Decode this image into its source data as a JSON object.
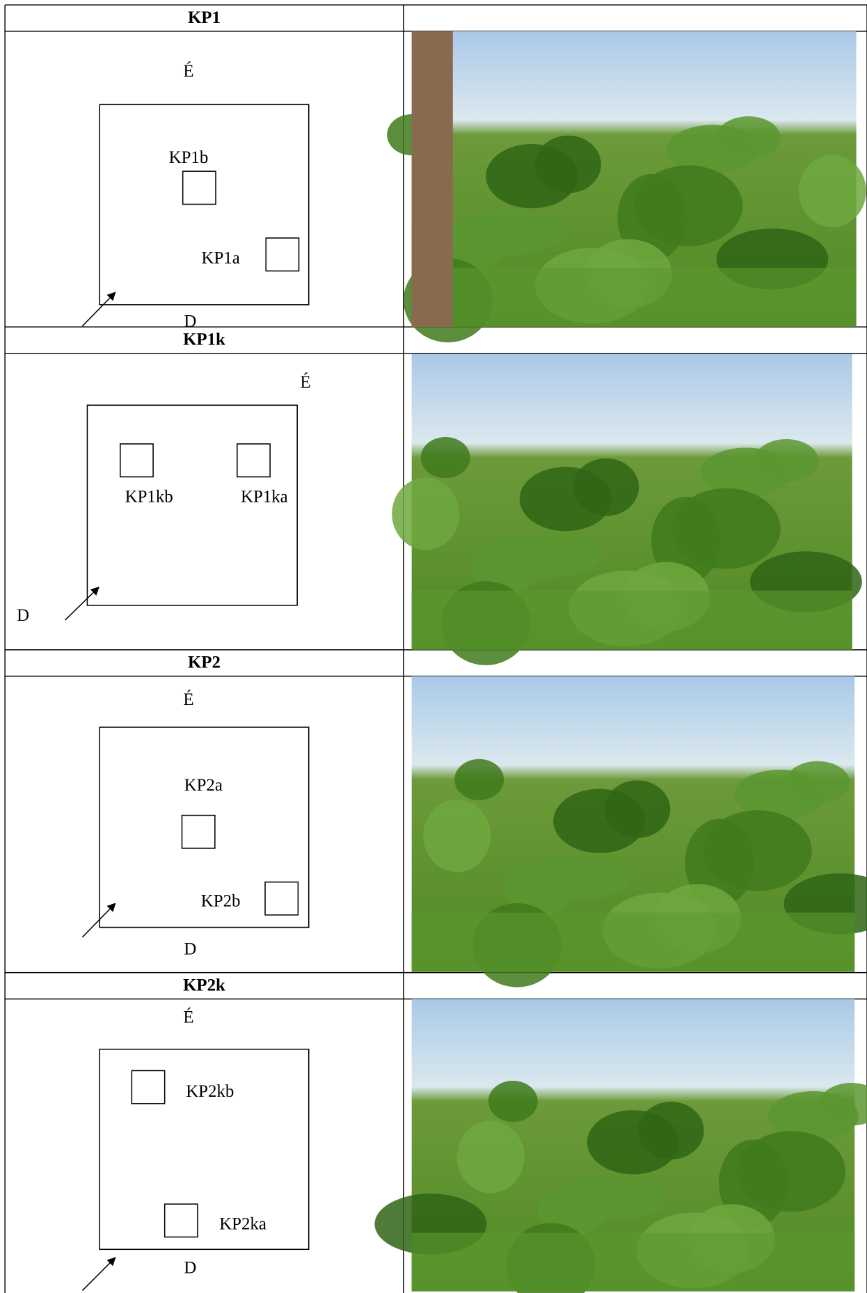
{
  "sections": [
    {
      "title": "KP1",
      "north": "É",
      "south": "D",
      "plots": [
        "KP1b",
        "KP1a"
      ]
    },
    {
      "title": "KP1k",
      "north": "É",
      "south": "D",
      "plots": [
        "KP1kb",
        "KP1ka"
      ]
    },
    {
      "title": "KP2",
      "north": "É",
      "south": "D",
      "plots": [
        "KP2a",
        "KP2b"
      ]
    },
    {
      "title": "KP2k",
      "north": "É",
      "south": "D",
      "plots": [
        "KP2kb",
        "KP2ka"
      ]
    }
  ]
}
